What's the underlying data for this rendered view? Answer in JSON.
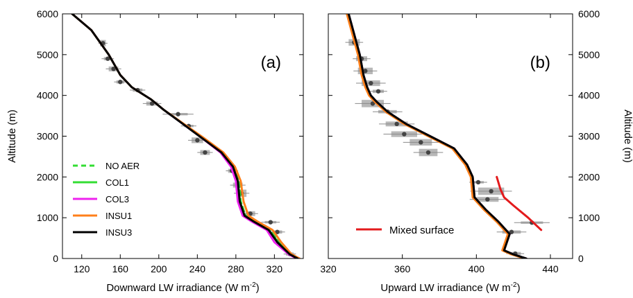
{
  "chart_data": [
    {
      "type": "line",
      "panel_label": "(a)",
      "xlabel": "Downward LW irradiance (W m",
      "xlabel_sup": "-2",
      "xlabel_close": ")",
      "ylabel": "Altitude (m)",
      "xlim": [
        100,
        350
      ],
      "ylim": [
        0,
        6000
      ],
      "xticks": [
        120,
        160,
        200,
        240,
        280,
        320
      ],
      "yticks": [
        0,
        1000,
        2000,
        3000,
        4000,
        5000,
        6000
      ],
      "legend": "lower-left",
      "series": [
        {
          "name": "NO AER",
          "color": "#33dd33",
          "dash": true,
          "x": [
            110,
            130,
            148,
            160,
            172,
            192,
            205,
            225,
            245,
            265,
            277,
            283,
            285,
            290,
            300,
            315,
            325,
            337,
            345
          ],
          "y": [
            6000,
            5600,
            5000,
            4500,
            4200,
            3900,
            3650,
            3300,
            2950,
            2600,
            2250,
            1900,
            1400,
            1050,
            900,
            700,
            400,
            100,
            0
          ]
        },
        {
          "name": "COL1",
          "color": "#33dd33",
          "dash": false,
          "x": [
            110,
            130,
            148,
            160,
            172,
            192,
            205,
            225,
            245,
            265,
            276,
            282,
            284,
            289,
            299,
            314,
            324,
            336,
            344
          ],
          "y": [
            6000,
            5600,
            5000,
            4500,
            4200,
            3900,
            3650,
            3300,
            2950,
            2600,
            2250,
            1900,
            1400,
            1050,
            900,
            700,
            400,
            100,
            0
          ]
        },
        {
          "name": "COL3",
          "color": "#ee22ee",
          "dash": false,
          "x": [
            110,
            130,
            148,
            160,
            172,
            192,
            205,
            225,
            245,
            264,
            275,
            280,
            282,
            287,
            297,
            312,
            320,
            335,
            343
          ],
          "y": [
            6000,
            5600,
            5000,
            4500,
            4200,
            3900,
            3650,
            3300,
            2950,
            2600,
            2250,
            1900,
            1400,
            1050,
            900,
            700,
            400,
            100,
            0
          ]
        },
        {
          "name": "INSU1",
          "color": "#ff7f1a",
          "dash": false,
          "x": [
            110,
            130,
            148,
            160,
            172,
            192,
            205,
            226,
            247,
            267,
            279,
            285,
            288,
            293,
            303,
            318,
            327,
            338,
            346
          ],
          "y": [
            6000,
            5600,
            5000,
            4500,
            4200,
            3900,
            3650,
            3300,
            2950,
            2600,
            2250,
            1900,
            1400,
            1050,
            900,
            700,
            400,
            100,
            0
          ]
        },
        {
          "name": "INSU3",
          "color": "#000000",
          "dash": false,
          "x": [
            110,
            130,
            148,
            160,
            172,
            192,
            205,
            225,
            245,
            265,
            277,
            282,
            284,
            289,
            299,
            314,
            323,
            336,
            344
          ],
          "y": [
            6000,
            5600,
            5000,
            4500,
            4200,
            3900,
            3650,
            3300,
            2950,
            2600,
            2250,
            1900,
            1400,
            1050,
            900,
            700,
            400,
            100,
            0
          ]
        }
      ],
      "observations": [
        {
          "x": 142,
          "y": 5280,
          "xerr": 3,
          "yerr": 80
        },
        {
          "x": 147,
          "y": 4900,
          "xerr": 4,
          "yerr": 40
        },
        {
          "x": 153,
          "y": 4650,
          "xerr": 5,
          "yerr": 60
        },
        {
          "x": 160,
          "y": 4330,
          "xerr": 4,
          "yerr": 40
        },
        {
          "x": 178,
          "y": 4130,
          "xerr": 5,
          "yerr": 40
        },
        {
          "x": 193,
          "y": 3800,
          "xerr": 6,
          "yerr": 50
        },
        {
          "x": 220,
          "y": 3540,
          "xerr": 10,
          "yerr": 30
        },
        {
          "x": 231,
          "y": 3250,
          "xerr": 5,
          "yerr": 30
        },
        {
          "x": 240,
          "y": 2900,
          "xerr": 6,
          "yerr": 70
        },
        {
          "x": 248,
          "y": 2600,
          "xerr": 5,
          "yerr": 60
        },
        {
          "x": 276,
          "y": 2150,
          "xerr": 4,
          "yerr": 50
        },
        {
          "x": 282,
          "y": 1800,
          "xerr": 5,
          "yerr": 60
        },
        {
          "x": 286,
          "y": 1600,
          "xerr": 5,
          "yerr": 90
        },
        {
          "x": 295,
          "y": 1100,
          "xerr": 5,
          "yerr": 60
        },
        {
          "x": 316,
          "y": 890,
          "xerr": 6,
          "yerr": 30
        },
        {
          "x": 323,
          "y": 650,
          "xerr": 5,
          "yerr": 40
        },
        {
          "x": 336,
          "y": 110,
          "xerr": 4,
          "yerr": 40
        }
      ]
    },
    {
      "type": "line",
      "panel_label": "(b)",
      "xlabel": "Upward LW irradiance (W m",
      "xlabel_sup": "-2",
      "xlabel_close": ")",
      "ylabel": "Altitude (m)",
      "xlim": [
        320,
        452
      ],
      "ylim": [
        0,
        6000
      ],
      "xticks": [
        320,
        360,
        400,
        440
      ],
      "yticks": [
        0,
        1000,
        2000,
        3000,
        4000,
        5000,
        6000
      ],
      "legend": "lower-left",
      "series": [
        {
          "name": "NO AER",
          "color": "#33dd33",
          "dash": true,
          "x": [
            331,
            334,
            337,
            339,
            341,
            343,
            346,
            352,
            362,
            375,
            388,
            395,
            398,
            399,
            405,
            412,
            418,
            415,
            420,
            427
          ],
          "y": [
            6000,
            5500,
            5000,
            4500,
            4200,
            4000,
            3850,
            3600,
            3300,
            3000,
            2700,
            2300,
            2000,
            1500,
            1200,
            900,
            600,
            200,
            100,
            0
          ]
        },
        {
          "name": "COL1",
          "color": "#33dd33",
          "dash": false,
          "x": [
            331,
            334,
            337,
            339,
            341,
            343,
            346,
            352,
            362,
            375,
            388,
            395,
            398,
            399,
            405,
            412,
            418,
            415,
            420,
            427
          ],
          "y": [
            6000,
            5500,
            5000,
            4500,
            4200,
            4000,
            3850,
            3600,
            3300,
            3000,
            2700,
            2300,
            2000,
            1500,
            1200,
            900,
            600,
            200,
            100,
            0
          ]
        },
        {
          "name": "COL3",
          "color": "#ee22ee",
          "dash": false,
          "x": [
            331,
            334,
            337,
            339,
            341,
            343,
            346,
            352,
            362,
            375,
            388,
            395,
            398,
            399,
            405,
            412,
            418,
            415,
            420,
            427
          ],
          "y": [
            6000,
            5500,
            5000,
            4500,
            4200,
            4000,
            3850,
            3600,
            3300,
            3000,
            2700,
            2300,
            2000,
            1500,
            1200,
            900,
            600,
            200,
            100,
            0
          ]
        },
        {
          "name": "INSU1",
          "color": "#ff7f1a",
          "dash": false,
          "x": [
            330,
            333,
            336,
            338,
            340,
            342,
            345,
            351,
            361,
            374,
            387,
            394,
            397,
            398,
            404,
            411,
            417,
            414,
            419,
            426
          ],
          "y": [
            6000,
            5500,
            5000,
            4500,
            4200,
            4000,
            3850,
            3600,
            3300,
            3000,
            2700,
            2300,
            2000,
            1500,
            1200,
            900,
            600,
            200,
            100,
            0
          ]
        },
        {
          "name": "INSU3",
          "color": "#000000",
          "dash": false,
          "x": [
            331,
            334,
            337,
            339,
            341,
            343,
            346,
            352,
            362,
            375,
            388,
            395,
            398,
            399,
            405,
            412,
            418,
            415,
            420,
            427
          ],
          "y": [
            6000,
            5500,
            5000,
            4500,
            4200,
            4000,
            3850,
            3600,
            3300,
            3000,
            2700,
            2300,
            2000,
            1500,
            1200,
            900,
            600,
            200,
            100,
            0
          ]
        },
        {
          "name": "Mixed surface",
          "color": "#e31a1c",
          "dash": false,
          "x": [
            411,
            413,
            415,
            420,
            428,
            435
          ],
          "y": [
            2000,
            1700,
            1500,
            1300,
            1000,
            700
          ]
        }
      ],
      "observations": [
        {
          "x": 334,
          "y": 5300,
          "xerr": 3,
          "yerr": 80
        },
        {
          "x": 338,
          "y": 4900,
          "xerr": 3,
          "yerr": 60
        },
        {
          "x": 340,
          "y": 4600,
          "xerr": 4,
          "yerr": 80
        },
        {
          "x": 343,
          "y": 4300,
          "xerr": 5,
          "yerr": 70
        },
        {
          "x": 347,
          "y": 4100,
          "xerr": 3,
          "yerr": 40
        },
        {
          "x": 344,
          "y": 3800,
          "xerr": 6,
          "yerr": 90
        },
        {
          "x": 352,
          "y": 3600,
          "xerr": 5,
          "yerr": 40
        },
        {
          "x": 357,
          "y": 3300,
          "xerr": 6,
          "yerr": 60
        },
        {
          "x": 361,
          "y": 3050,
          "xerr": 7,
          "yerr": 70
        },
        {
          "x": 370,
          "y": 2850,
          "xerr": 6,
          "yerr": 80
        },
        {
          "x": 374,
          "y": 2600,
          "xerr": 5,
          "yerr": 90
        },
        {
          "x": 401,
          "y": 1870,
          "xerr": 3,
          "yerr": 30
        },
        {
          "x": 408,
          "y": 1650,
          "xerr": 7,
          "yerr": 90
        },
        {
          "x": 406,
          "y": 1450,
          "xerr": 6,
          "yerr": 60
        },
        {
          "x": 430,
          "y": 880,
          "xerr": 6,
          "yerr": 30
        },
        {
          "x": 419,
          "y": 650,
          "xerr": 5,
          "yerr": 40
        },
        {
          "x": 421,
          "y": 120,
          "xerr": 3,
          "yerr": 40
        }
      ]
    }
  ]
}
